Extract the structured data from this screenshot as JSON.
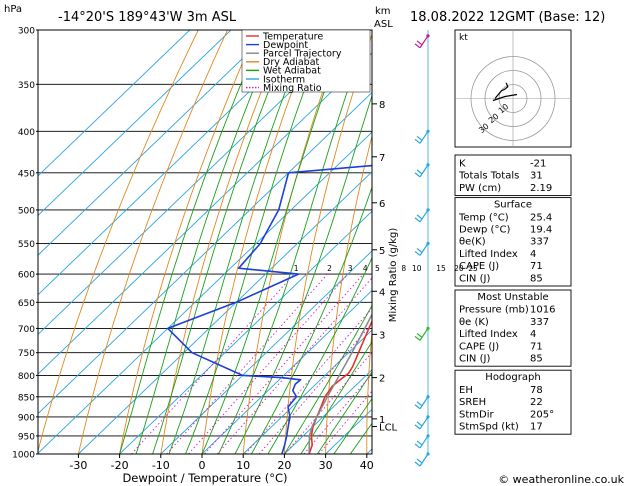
{
  "header": {
    "hpa_label": "hPa",
    "location": "-14°20'S  189°43'W  3m  ASL",
    "km_label": "km",
    "asl_label": "ASL",
    "datetime": "18.08.2022  12GMT  (Base: 12)"
  },
  "footer": {
    "credit": "© weatheronline.co.uk"
  },
  "legend": [
    {
      "label": "Temperature",
      "color": "#e8302a"
    },
    {
      "label": "Dewpoint",
      "color": "#1e3fd8"
    },
    {
      "label": "Parcel Trajectory",
      "color": "#888888"
    },
    {
      "label": "Dry Adiabat",
      "color": "#e08a20"
    },
    {
      "label": "Wet Adiabat",
      "color": "#1aa01a"
    },
    {
      "label": "Isotherm",
      "color": "#2aa6e0"
    },
    {
      "label": "Mixing Ratio",
      "color": "#d21dc8"
    }
  ],
  "chart_data": {
    "type": "line",
    "subtype": "skew-T log-p",
    "xlabel": "Dewpoint / Temperature (°C)",
    "ylabel_left": "hPa",
    "ylabel_right": "Mixing Ratio (g/kg)",
    "x_ticks": [
      -30,
      -20,
      -10,
      0,
      10,
      20,
      30,
      40
    ],
    "pressure_levels": [
      300,
      350,
      400,
      450,
      500,
      550,
      600,
      650,
      700,
      750,
      800,
      850,
      900,
      950,
      1000
    ],
    "km_ticks": [
      {
        "label": "8",
        "p": 370
      },
      {
        "label": "7",
        "p": 430
      },
      {
        "label": "6",
        "p": 490
      },
      {
        "label": "5",
        "p": 560
      },
      {
        "label": "4",
        "p": 630
      },
      {
        "label": "3",
        "p": 712
      },
      {
        "label": "2",
        "p": 805
      },
      {
        "label": "1",
        "p": 905
      },
      {
        "label": "LCL",
        "p": 925
      }
    ],
    "mixing_ratio_labels": [
      "1",
      "2",
      "3",
      "4",
      "5",
      "8",
      "10",
      "15",
      "20",
      "25"
    ],
    "series": [
      {
        "name": "Temperature",
        "color": "#e8302a",
        "points": [
          [
            1000,
            26
          ],
          [
            975,
            24.5
          ],
          [
            950,
            22
          ],
          [
            925,
            20
          ],
          [
            900,
            18.5
          ],
          [
            875,
            17
          ],
          [
            850,
            15.4
          ],
          [
            825,
            14.5
          ],
          [
            810,
            14.8
          ],
          [
            795,
            15.2
          ],
          [
            780,
            14.5
          ],
          [
            750,
            12.4
          ],
          [
            700,
            8.8
          ],
          [
            650,
            5
          ],
          [
            600,
            1.4
          ],
          [
            550,
            -2.4
          ],
          [
            500,
            -6.8
          ],
          [
            450,
            -12.5
          ],
          [
            400,
            -19.5
          ],
          [
            350,
            -27.5
          ],
          [
            300,
            -37
          ]
        ]
      },
      {
        "name": "Dewpoint",
        "color": "#1e3fd8",
        "points": [
          [
            1000,
            19.4
          ],
          [
            975,
            17.8
          ],
          [
            950,
            16
          ],
          [
            925,
            14
          ],
          [
            900,
            12
          ],
          [
            875,
            9
          ],
          [
            850,
            8.5
          ],
          [
            835,
            6
          ],
          [
            820,
            5
          ],
          [
            810,
            5.2
          ],
          [
            805,
            0
          ],
          [
            800,
            -10
          ],
          [
            750,
            -28
          ],
          [
            700,
            -40
          ],
          [
            650,
            -30
          ],
          [
            600,
            -22
          ],
          [
            590,
            -38
          ],
          [
            550,
            -39
          ],
          [
            500,
            -43
          ],
          [
            450,
            -50
          ],
          [
            440,
            -30
          ],
          [
            420,
            -32
          ],
          [
            400,
            -16
          ],
          [
            380,
            -28
          ],
          [
            350,
            -44
          ],
          [
            320,
            -44
          ],
          [
            300,
            -44
          ]
        ]
      },
      {
        "name": "Parcel Trajectory",
        "color": "#888888",
        "points": [
          [
            1000,
            26
          ],
          [
            950,
            21.5
          ],
          [
            925,
            19.8
          ],
          [
            900,
            18.5
          ],
          [
            850,
            16
          ],
          [
            800,
            13.5
          ],
          [
            750,
            10.8
          ],
          [
            700,
            7.8
          ],
          [
            650,
            4.5
          ],
          [
            600,
            0.8
          ],
          [
            550,
            -3.4
          ],
          [
            500,
            -8.3
          ],
          [
            450,
            -14
          ],
          [
            400,
            -21
          ],
          [
            350,
            -29.5
          ],
          [
            300,
            -40
          ]
        ]
      }
    ]
  },
  "hodograph": {
    "label": "kt",
    "ring_labels": [
      "10",
      "20",
      "30"
    ],
    "points": [
      [
        0,
        0
      ],
      [
        2,
        3
      ],
      [
        4,
        6
      ],
      [
        6,
        7
      ],
      [
        8,
        9
      ],
      [
        7,
        12
      ]
    ]
  },
  "indices": {
    "top": [
      {
        "label": "K",
        "value": "-21"
      },
      {
        "label": "Totals Totals",
        "value": "31"
      },
      {
        "label": "PW (cm)",
        "value": "2.19"
      }
    ],
    "surface": {
      "title": "Surface",
      "rows": [
        {
          "label": "Temp (°C)",
          "value": "25.4"
        },
        {
          "label": "Dewp (°C)",
          "value": "19.4"
        },
        {
          "label": "θe(K)",
          "value": "337"
        },
        {
          "label": "Lifted Index",
          "value": "4"
        },
        {
          "label": "CAPE (J)",
          "value": "71"
        },
        {
          "label": "CIN (J)",
          "value": "85"
        }
      ]
    },
    "most_unstable": {
      "title": "Most Unstable",
      "rows": [
        {
          "label": "Pressure (mb)",
          "value": "1016"
        },
        {
          "label": "θe (K)",
          "value": "337"
        },
        {
          "label": "Lifted Index",
          "value": "4"
        },
        {
          "label": "CAPE (J)",
          "value": "71"
        },
        {
          "label": "CIN (J)",
          "value": "85"
        }
      ]
    },
    "hodograph_box": {
      "title": "Hodograph",
      "rows": [
        {
          "label": "EH",
          "value": "78"
        },
        {
          "label": "SREH",
          "value": "22"
        },
        {
          "label": "StmDir",
          "value": "205°"
        },
        {
          "label": "StmSpd (kt)",
          "value": "17"
        }
      ]
    }
  },
  "wind_barbs": [
    {
      "p": 305,
      "color": "#c0188c"
    },
    {
      "p": 400,
      "color": "#2aa6e0"
    },
    {
      "p": 440,
      "color": "#2aa6e0"
    },
    {
      "p": 500,
      "color": "#2aa6e0"
    },
    {
      "p": 550,
      "color": "#2aa6e0"
    },
    {
      "p": 700,
      "color": "#33b833"
    },
    {
      "p": 850,
      "color": "#2aa6e0"
    },
    {
      "p": 900,
      "color": "#2aa6e0"
    },
    {
      "p": 950,
      "color": "#2aa6e0"
    },
    {
      "p": 1000,
      "color": "#2aa6e0"
    }
  ]
}
